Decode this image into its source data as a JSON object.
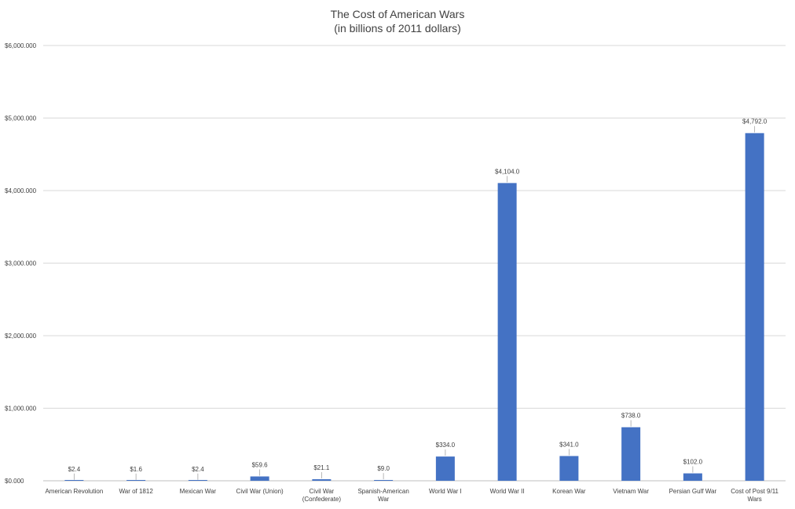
{
  "chart_data": {
    "type": "bar",
    "title": "The Cost of American Wars",
    "subtitle": "(in billions of 2011 dollars)",
    "xlabel": "",
    "ylabel": "",
    "ylim": [
      0,
      6000
    ],
    "yticks": [
      0,
      1000,
      2000,
      3000,
      4000,
      5000,
      6000
    ],
    "ytick_labels": [
      "$0.000",
      "$1,000.000",
      "$2,000.000",
      "$3,000.000",
      "$4,000.000",
      "$5,000.000",
      "$6,000.000"
    ],
    "grid": true,
    "legend": "none",
    "bar_color": "#4472C4",
    "categories": [
      [
        "American Revolution"
      ],
      [
        "War of 1812"
      ],
      [
        "Mexican War"
      ],
      [
        "Civil War (Union)"
      ],
      [
        "Civil War",
        "(Confederate)"
      ],
      [
        "Spanish-American",
        "War"
      ],
      [
        "World War I"
      ],
      [
        "World War II"
      ],
      [
        "Korean War"
      ],
      [
        "Vietnam War"
      ],
      [
        "Persian Gulf War"
      ],
      [
        "Cost of Post 9/11",
        "Wars"
      ]
    ],
    "values": [
      2.4,
      1.6,
      2.4,
      59.6,
      21.1,
      9.0,
      334.0,
      4104.0,
      341.0,
      738.0,
      102.0,
      4792.0
    ],
    "data_labels": [
      "$2.4",
      "$1.6",
      "$2.4",
      "$59.6",
      "$21.1",
      "$9.0",
      "$334.0",
      "$4,104.0",
      "$341.0",
      "$738.0",
      "$102.0",
      "$4,792.0"
    ]
  }
}
